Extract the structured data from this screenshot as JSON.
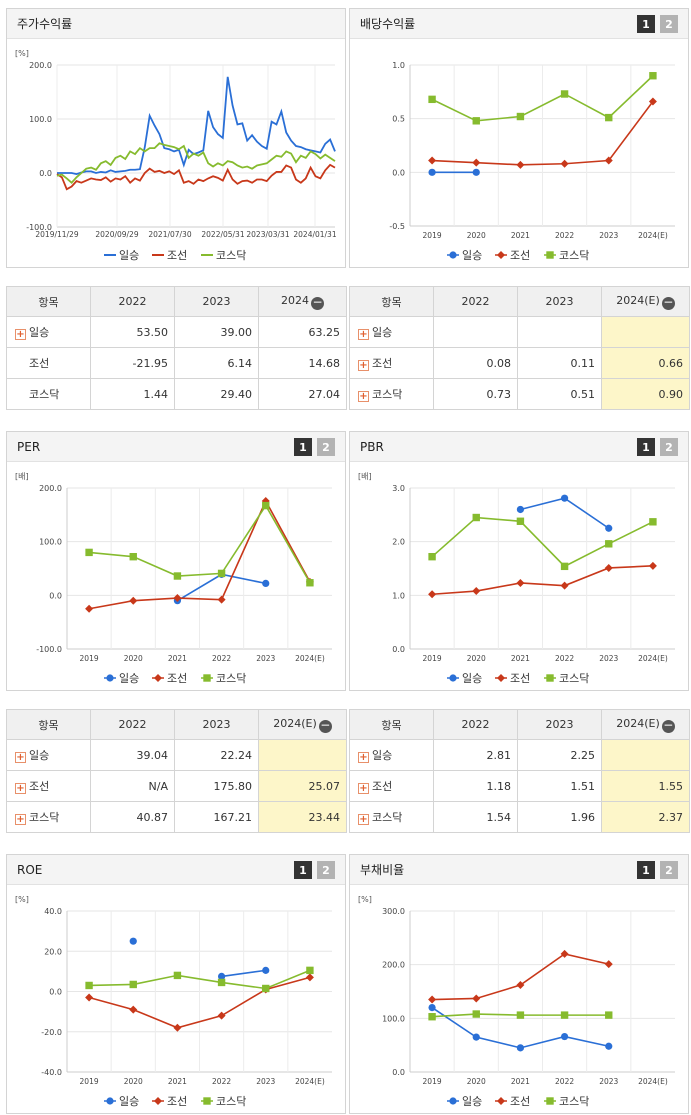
{
  "colors": {
    "일승": "#2a6fd6",
    "조선": "#c8381a",
    "코스닥": "#86bb2e"
  },
  "toggle": {
    "one": "1",
    "two": "2"
  },
  "panels": {
    "stock": {
      "title": "주가수익률"
    },
    "div": {
      "title": "배당수익률"
    },
    "per": {
      "title": "PER"
    },
    "pbr": {
      "title": "PBR"
    },
    "roe": {
      "title": "ROE"
    },
    "debt": {
      "title": "부채비율"
    }
  },
  "chart_data": [
    {
      "id": "stock",
      "type": "line",
      "unit": "[%]",
      "ylim": [
        -100,
        200
      ],
      "yticks": [
        "200.0",
        "100.0",
        "0.0",
        "-100.0"
      ],
      "yvals": [
        200,
        100,
        0,
        -100
      ],
      "xticks": [
        "2019/11/29",
        "2020/09/29",
        "2021/07/30",
        "2022/05/31",
        "2023/03/31",
        "2024/01/31"
      ],
      "legend": [
        "일승",
        "조선",
        "코스닥"
      ],
      "series": [
        {
          "name": "일승",
          "marker": "none",
          "values": [
            0,
            0,
            0,
            0,
            -2,
            1,
            3,
            3,
            0,
            2,
            1,
            5,
            2,
            3,
            4,
            6,
            6,
            7,
            48,
            106,
            88,
            72,
            46,
            44,
            40,
            43,
            15,
            43,
            35,
            38,
            42,
            115,
            85,
            72,
            65,
            178,
            125,
            90,
            92,
            60,
            70,
            58,
            50,
            45,
            95,
            90,
            114,
            75,
            60,
            50,
            48,
            44,
            42,
            40,
            38,
            54,
            62,
            40
          ]
        },
        {
          "name": "조선",
          "marker": "none",
          "values": [
            -2,
            -8,
            -30,
            -25,
            -15,
            -18,
            -14,
            -10,
            -12,
            -13,
            -8,
            -16,
            -10,
            -12,
            -6,
            -18,
            -10,
            -14,
            0,
            8,
            2,
            4,
            0,
            3,
            -2,
            5,
            -18,
            -15,
            -20,
            -12,
            -15,
            -10,
            -6,
            -9,
            -14,
            6,
            -12,
            -20,
            -15,
            -14,
            -18,
            -12,
            -12,
            -15,
            -5,
            2,
            2,
            14,
            10,
            -12,
            -18,
            -10,
            10,
            -6,
            -10,
            5,
            15,
            10
          ]
        },
        {
          "name": "코스닥",
          "marker": "none",
          "values": [
            -5,
            -3,
            -10,
            -18,
            -8,
            0,
            8,
            10,
            6,
            18,
            22,
            15,
            28,
            32,
            26,
            40,
            35,
            46,
            40,
            46,
            46,
            55,
            52,
            50,
            48,
            44,
            50,
            28,
            36,
            32,
            38,
            18,
            12,
            18,
            14,
            22,
            20,
            14,
            10,
            12,
            8,
            14,
            16,
            18,
            25,
            32,
            30,
            40,
            36,
            20,
            32,
            28,
            40,
            35,
            27,
            34,
            28,
            22
          ]
        }
      ]
    },
    {
      "id": "div",
      "type": "line",
      "unit": "",
      "ylim": [
        -0.5,
        1.0
      ],
      "yticks": [
        "1.0",
        "0.5",
        "0.0",
        "-0.5"
      ],
      "yvals": [
        1.0,
        0.5,
        0.0,
        -0.5
      ],
      "xticks": [
        "2019",
        "2020",
        "2021",
        "2022",
        "2023",
        "2024(E)"
      ],
      "legend": [
        "일승",
        "조선",
        "코스닥"
      ],
      "series": [
        {
          "name": "일승",
          "marker": "circle",
          "values": [
            0.0,
            0.0,
            null,
            null,
            null,
            null
          ]
        },
        {
          "name": "조선",
          "marker": "diamond",
          "values": [
            0.11,
            0.09,
            0.07,
            0.08,
            0.11,
            0.66
          ]
        },
        {
          "name": "코스닥",
          "marker": "square",
          "values": [
            0.68,
            0.48,
            0.52,
            0.73,
            0.51,
            0.9
          ]
        }
      ]
    },
    {
      "id": "per",
      "type": "line",
      "unit": "[배]",
      "ylim": [
        -100,
        200
      ],
      "yticks": [
        "200.0",
        "100.0",
        "0.0",
        "-100.0"
      ],
      "yvals": [
        200,
        100,
        0,
        -100
      ],
      "xticks": [
        "2019",
        "2020",
        "2021",
        "2022",
        "2023",
        "2024(E)"
      ],
      "legend": [
        "일승",
        "조선",
        "코스닥"
      ],
      "series": [
        {
          "name": "일승",
          "marker": "circle",
          "values": [
            null,
            null,
            -10,
            39.04,
            22.24,
            null
          ]
        },
        {
          "name": "조선",
          "marker": "diamond",
          "values": [
            -25,
            -10,
            -5,
            -8,
            175.8,
            25.07
          ]
        },
        {
          "name": "코스닥",
          "marker": "square",
          "values": [
            80,
            72,
            36,
            40.87,
            167.21,
            23.44
          ]
        }
      ]
    },
    {
      "id": "pbr",
      "type": "line",
      "unit": "[배]",
      "ylim": [
        0,
        3
      ],
      "yticks": [
        "3.0",
        "2.0",
        "1.0",
        "0.0"
      ],
      "yvals": [
        3,
        2,
        1,
        0
      ],
      "xticks": [
        "2019",
        "2020",
        "2021",
        "2022",
        "2023",
        "2024(E)"
      ],
      "legend": [
        "일승",
        "조선",
        "코스닥"
      ],
      "series": [
        {
          "name": "일승",
          "marker": "circle",
          "values": [
            null,
            null,
            2.6,
            2.81,
            2.25,
            null
          ]
        },
        {
          "name": "조선",
          "marker": "diamond",
          "values": [
            1.02,
            1.08,
            1.23,
            1.18,
            1.51,
            1.55
          ]
        },
        {
          "name": "코스닥",
          "marker": "square",
          "values": [
            1.72,
            2.45,
            2.38,
            1.54,
            1.96,
            2.37
          ]
        }
      ]
    },
    {
      "id": "roe",
      "type": "line",
      "unit": "[%]",
      "ylim": [
        -40,
        40
      ],
      "yticks": [
        "40.0",
        "20.0",
        "0.0",
        "-20.0",
        "-40.0"
      ],
      "yvals": [
        40,
        20,
        0,
        -20,
        -40
      ],
      "xticks": [
        "2019",
        "2020",
        "2021",
        "2022",
        "2023",
        "2024(E)"
      ],
      "legend": [
        "일승",
        "조선",
        "코스닥"
      ],
      "series": [
        {
          "name": "일승",
          "marker": "circle",
          "values": [
            null,
            25,
            null,
            7.5,
            10.5,
            null
          ]
        },
        {
          "name": "조선",
          "marker": "diamond",
          "values": [
            -3,
            -9,
            -18,
            -12,
            1,
            7
          ]
        },
        {
          "name": "코스닥",
          "marker": "square",
          "values": [
            3,
            3.5,
            8,
            4.5,
            1.5,
            10.5
          ]
        }
      ]
    },
    {
      "id": "debt",
      "type": "line",
      "unit": "[%]",
      "ylim": [
        0,
        300
      ],
      "yticks": [
        "300.0",
        "200.0",
        "100.0",
        "0.0"
      ],
      "yvals": [
        300,
        200,
        100,
        0
      ],
      "xticks": [
        "2019",
        "2020",
        "2021",
        "2022",
        "2023",
        "2024(E)"
      ],
      "legend": [
        "일승",
        "조선",
        "코스닥"
      ],
      "series": [
        {
          "name": "일승",
          "marker": "circle",
          "values": [
            120,
            65,
            45,
            66,
            48,
            null
          ]
        },
        {
          "name": "조선",
          "marker": "diamond",
          "values": [
            135,
            137,
            162,
            220,
            201,
            null
          ]
        },
        {
          "name": "코스닥",
          "marker": "square",
          "values": [
            103,
            108,
            106,
            106,
            106,
            null
          ]
        }
      ]
    }
  ],
  "tables": {
    "stock": {
      "head": [
        "항목",
        "2022",
        "2023",
        "2024"
      ],
      "rows": [
        {
          "name": "일승",
          "plus": true,
          "cells": [
            "53.50",
            "39.00",
            "63.25"
          ]
        },
        {
          "name": "조선",
          "plus": false,
          "cells": [
            "-21.95",
            "6.14",
            "14.68"
          ]
        },
        {
          "name": "코스닥",
          "plus": false,
          "cells": [
            "1.44",
            "29.40",
            "27.04"
          ]
        }
      ]
    },
    "div": {
      "head": [
        "항목",
        "2022",
        "2023",
        "2024(E)"
      ],
      "rows": [
        {
          "name": "일승",
          "plus": true,
          "cells": [
            "",
            "",
            ""
          ]
        },
        {
          "name": "조선",
          "plus": true,
          "cells": [
            "0.08",
            "0.11",
            "0.66"
          ]
        },
        {
          "name": "코스닥",
          "plus": true,
          "cells": [
            "0.73",
            "0.51",
            "0.90"
          ]
        }
      ]
    },
    "per": {
      "head": [
        "항목",
        "2022",
        "2023",
        "2024(E)"
      ],
      "rows": [
        {
          "name": "일승",
          "plus": true,
          "cells": [
            "39.04",
            "22.24",
            ""
          ]
        },
        {
          "name": "조선",
          "plus": true,
          "cells": [
            "N/A",
            "175.80",
            "25.07"
          ]
        },
        {
          "name": "코스닥",
          "plus": true,
          "cells": [
            "40.87",
            "167.21",
            "23.44"
          ]
        }
      ]
    },
    "pbr": {
      "head": [
        "항목",
        "2022",
        "2023",
        "2024(E)"
      ],
      "rows": [
        {
          "name": "일승",
          "plus": true,
          "cells": [
            "2.81",
            "2.25",
            ""
          ]
        },
        {
          "name": "조선",
          "plus": true,
          "cells": [
            "1.18",
            "1.51",
            "1.55"
          ]
        },
        {
          "name": "코스닥",
          "plus": true,
          "cells": [
            "1.54",
            "1.96",
            "2.37"
          ]
        }
      ]
    }
  }
}
